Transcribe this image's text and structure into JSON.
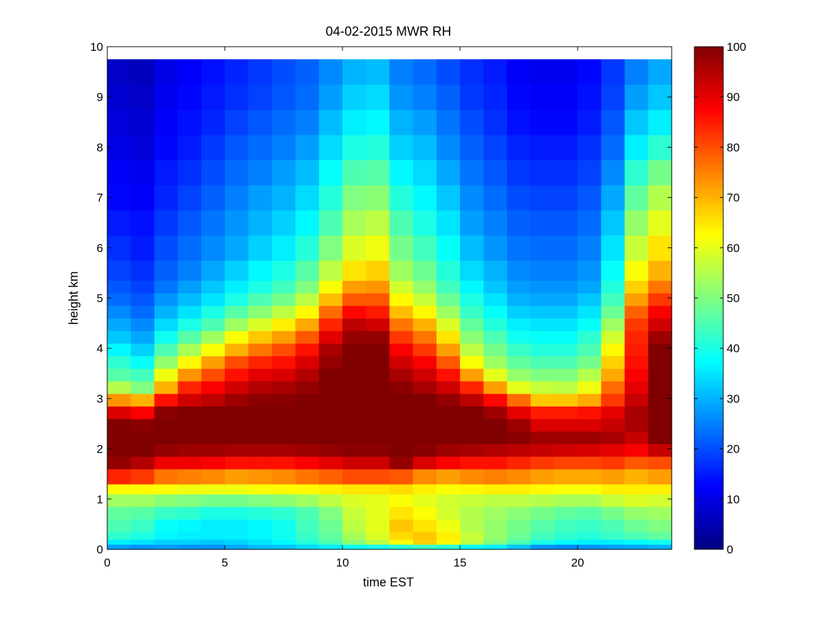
{
  "chart_data": {
    "type": "heatmap",
    "title": "04-02-2015 MWR RH",
    "xlabel": "time EST",
    "ylabel": "height km",
    "xlim": [
      0,
      24
    ],
    "ylim": [
      0,
      10
    ],
    "xticks": [
      0,
      5,
      10,
      15,
      20
    ],
    "yticks": [
      0,
      1,
      2,
      3,
      4,
      5,
      6,
      7,
      8,
      9,
      10
    ],
    "colorbar": {
      "colormap": "jet",
      "clim": [
        0,
        100
      ],
      "ticks": [
        0,
        10,
        20,
        30,
        40,
        50,
        60,
        70,
        80,
        90,
        100
      ]
    },
    "x": [
      0.5,
      1.5,
      2.5,
      3.5,
      4.5,
      5.5,
      6.5,
      7.5,
      8.5,
      9.5,
      10.5,
      11.5,
      12.5,
      13.5,
      14.5,
      15.5,
      16.5,
      17.5,
      18.5,
      19.5,
      20.5,
      21.5,
      22.5,
      23.5
    ],
    "x_cell_width": 1,
    "y": [
      0.05,
      0.15,
      0.25,
      0.5,
      0.75,
      1.0,
      1.2,
      1.45,
      1.75,
      2.0,
      2.25,
      2.5,
      2.75,
      3.0,
      3.25,
      3.5,
      3.75,
      4.0,
      4.25,
      4.5,
      4.75,
      5.0,
      5.25,
      5.5,
      6.0,
      6.5,
      7.0,
      7.5,
      8.0,
      8.5,
      9.0,
      9.5
    ],
    "y_edges": [
      0,
      0.1,
      0.2,
      0.35,
      0.6,
      0.85,
      1.1,
      1.3,
      1.6,
      1.85,
      2.1,
      2.35,
      2.6,
      2.85,
      3.1,
      3.35,
      3.6,
      3.85,
      4.1,
      4.35,
      4.6,
      4.85,
      5.1,
      5.35,
      5.75,
      6.25,
      6.75,
      7.25,
      7.75,
      8.25,
      8.75,
      9.25,
      9.75
    ],
    "values": [
      [
        28,
        27,
        28,
        27,
        27,
        29,
        31,
        32,
        34,
        36,
        38,
        39,
        41,
        43,
        41,
        38,
        36,
        32,
        27,
        26,
        27,
        28,
        29,
        30
      ],
      [
        36,
        35,
        33,
        33,
        32,
        33,
        35,
        37,
        41,
        45,
        51,
        56,
        62,
        67,
        63,
        56,
        50,
        45,
        40,
        38,
        36,
        36,
        37,
        39
      ],
      [
        42,
        40,
        37,
        36,
        36,
        36,
        37,
        39,
        43,
        47,
        54,
        59,
        66,
        68,
        64,
        57,
        52,
        48,
        44,
        42,
        41,
        43,
        45,
        47
      ],
      [
        45,
        43,
        38,
        37,
        36,
        36,
        37,
        39,
        44,
        48,
        56,
        60,
        68,
        65,
        61,
        55,
        52,
        49,
        46,
        44,
        43,
        45,
        48,
        50
      ],
      [
        47,
        46,
        43,
        42,
        40,
        40,
        41,
        42,
        45,
        50,
        57,
        60,
        65,
        62,
        58,
        55,
        53,
        51,
        49,
        47,
        46,
        49,
        52,
        53
      ],
      [
        53,
        53,
        51,
        50,
        49,
        49,
        50,
        51,
        53,
        56,
        59,
        60,
        62,
        60,
        58,
        57,
        56,
        56,
        55,
        54,
        54,
        57,
        59,
        58
      ],
      [
        63,
        63,
        62,
        61,
        61,
        61,
        62,
        63,
        63,
        64,
        65,
        65,
        66,
        64,
        62,
        63,
        64,
        64,
        63,
        62,
        62,
        64,
        64,
        64
      ],
      [
        84,
        82,
        76,
        75,
        74,
        72,
        73,
        74,
        76,
        78,
        80,
        80,
        79,
        74,
        72,
        74,
        75,
        74,
        72,
        71,
        71,
        72,
        70,
        72
      ],
      [
        98,
        95,
        89,
        89,
        88,
        86,
        86,
        86,
        88,
        90,
        92,
        92,
        98,
        91,
        88,
        86,
        86,
        84,
        82,
        81,
        81,
        82,
        79,
        80
      ],
      [
        100,
        100,
        98,
        97,
        97,
        96,
        96,
        96,
        97,
        98,
        99,
        99,
        100,
        99,
        97,
        96,
        95,
        94,
        93,
        92,
        91,
        90,
        88,
        93
      ],
      [
        100,
        100,
        100,
        100,
        100,
        100,
        100,
        100,
        100,
        100,
        100,
        100,
        100,
        100,
        100,
        100,
        100,
        99,
        97,
        97,
        97,
        96,
        93,
        100
      ],
      [
        100,
        99,
        100,
        100,
        100,
        100,
        100,
        100,
        100,
        100,
        100,
        100,
        100,
        100,
        100,
        100,
        100,
        97,
        91,
        91,
        91,
        93,
        96,
        100
      ],
      [
        91,
        88,
        99,
        100,
        100,
        100,
        100,
        100,
        100,
        100,
        100,
        100,
        100,
        100,
        100,
        100,
        97,
        90,
        85,
        85,
        86,
        90,
        96,
        100
      ],
      [
        73,
        70,
        86,
        92,
        94,
        97,
        99,
        99,
        100,
        100,
        100,
        100,
        100,
        100,
        98,
        94,
        87,
        77,
        68,
        68,
        71,
        82,
        93,
        100
      ],
      [
        55,
        50,
        70,
        84,
        88,
        92,
        95,
        96,
        98,
        100,
        100,
        100,
        99,
        96,
        92,
        84,
        72,
        60,
        57,
        56,
        61,
        77,
        90,
        100
      ],
      [
        46,
        44,
        61,
        73,
        80,
        86,
        90,
        91,
        95,
        100,
        100,
        100,
        96,
        92,
        86,
        72,
        60,
        52,
        50,
        50,
        55,
        71,
        88,
        100
      ],
      [
        42,
        38,
        52,
        63,
        72,
        80,
        84,
        86,
        91,
        98,
        100,
        100,
        92,
        88,
        79,
        62,
        53,
        47,
        45,
        45,
        49,
        67,
        86,
        100
      ],
      [
        37,
        33,
        45,
        54,
        62,
        70,
        76,
        80,
        86,
        96,
        100,
        100,
        88,
        82,
        72,
        56,
        49,
        43,
        41,
        41,
        45,
        63,
        85,
        100
      ],
      [
        32,
        29,
        39,
        46,
        53,
        62,
        68,
        72,
        79,
        90,
        98,
        98,
        82,
        76,
        65,
        51,
        45,
        39,
        38,
        38,
        42,
        58,
        84,
        97
      ],
      [
        29,
        26,
        34,
        40,
        45,
        53,
        59,
        64,
        71,
        84,
        94,
        92,
        76,
        70,
        59,
        47,
        41,
        36,
        35,
        35,
        38,
        53,
        82,
        92
      ],
      [
        26,
        23,
        30,
        35,
        40,
        46,
        51,
        56,
        63,
        77,
        87,
        85,
        69,
        63,
        53,
        43,
        38,
        33,
        32,
        32,
        35,
        48,
        78,
        88
      ],
      [
        23,
        21,
        27,
        31,
        35,
        40,
        45,
        49,
        56,
        69,
        79,
        79,
        63,
        57,
        48,
        40,
        35,
        30,
        29,
        29,
        32,
        44,
        72,
        82
      ],
      [
        21,
        19,
        24,
        28,
        32,
        36,
        40,
        44,
        50,
        62,
        72,
        73,
        58,
        52,
        44,
        37,
        32,
        28,
        27,
        27,
        29,
        41,
        67,
        76
      ],
      [
        19,
        17,
        22,
        25,
        29,
        33,
        37,
        40,
        46,
        56,
        65,
        67,
        53,
        48,
        41,
        34,
        30,
        26,
        25,
        25,
        27,
        38,
        62,
        70
      ],
      [
        17,
        15,
        20,
        23,
        26,
        29,
        33,
        36,
        41,
        50,
        59,
        61,
        49,
        44,
        38,
        31,
        27,
        24,
        23,
        23,
        25,
        35,
        57,
        65
      ],
      [
        15,
        14,
        18,
        21,
        24,
        27,
        30,
        33,
        37,
        45,
        54,
        56,
        45,
        40,
        35,
        28,
        25,
        22,
        21,
        21,
        23,
        32,
        52,
        60
      ],
      [
        13,
        12,
        16,
        19,
        22,
        25,
        28,
        30,
        34,
        41,
        50,
        51,
        41,
        37,
        32,
        26,
        23,
        20,
        19,
        19,
        21,
        29,
        47,
        55
      ],
      [
        12,
        11,
        15,
        17,
        20,
        23,
        25,
        28,
        31,
        38,
        45,
        46,
        37,
        34,
        29,
        24,
        21,
        18,
        17,
        17,
        19,
        26,
        42,
        49
      ],
      [
        10,
        9,
        13,
        15,
        18,
        21,
        23,
        25,
        28,
        34,
        40,
        41,
        33,
        31,
        26,
        22,
        19,
        16,
        15,
        15,
        17,
        23,
        36,
        42
      ],
      [
        9,
        8,
        12,
        14,
        16,
        19,
        21,
        23,
        25,
        31,
        36,
        37,
        30,
        28,
        24,
        20,
        17,
        14,
        13,
        13,
        15,
        21,
        32,
        36
      ],
      [
        8,
        7,
        11,
        13,
        15,
        17,
        19,
        21,
        23,
        28,
        33,
        34,
        27,
        25,
        22,
        18,
        16,
        13,
        12,
        12,
        14,
        19,
        28,
        32
      ],
      [
        7,
        6,
        10,
        12,
        14,
        16,
        18,
        20,
        22,
        26,
        30,
        31,
        25,
        23,
        20,
        17,
        15,
        12,
        11,
        11,
        13,
        18,
        25,
        29
      ]
    ]
  }
}
